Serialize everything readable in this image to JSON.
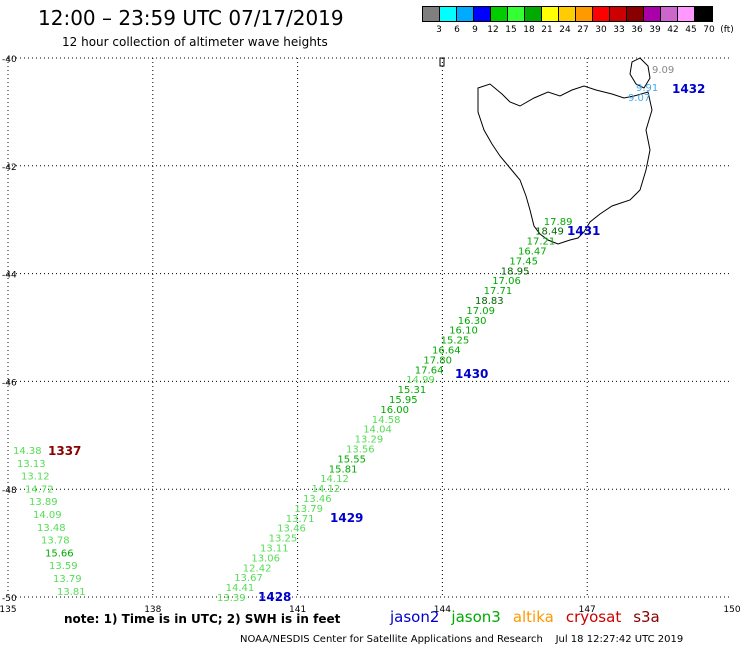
{
  "title": "12:00 – 23:59 UTC 07/17/2019",
  "subtitle": "12 hour collection of altimeter wave heights",
  "colorbar": {
    "colors": [
      "#7f7f7f",
      "#00ffff",
      "#00aaff",
      "#0000ff",
      "#00cc00",
      "#33ff33",
      "#00aa00",
      "#ffff00",
      "#ffcc00",
      "#ff9900",
      "#ff0000",
      "#cc0000",
      "#880000",
      "#aa00aa",
      "#cc66cc",
      "#ff99ff",
      "#000000"
    ],
    "labels": [
      "3",
      "6",
      "9",
      "12",
      "15",
      "18",
      "21",
      "24",
      "27",
      "30",
      "33",
      "36",
      "39",
      "42",
      "45",
      "70",
      "(ft)"
    ]
  },
  "axes": {
    "lon_ticks": [
      "135",
      "138",
      "141",
      "144",
      "147",
      "150"
    ],
    "lat_ticks": [
      "-40",
      "-42",
      "-44",
      "-46",
      "-48",
      "-50"
    ]
  },
  "tracks": [
    {
      "time": "1337",
      "color": "#880000"
    },
    {
      "time": "1428",
      "color": "#0000cc"
    },
    {
      "time": "1429",
      "color": "#0000cc"
    },
    {
      "time": "1430",
      "color": "#0000cc"
    },
    {
      "time": "1431",
      "color": "#0000cc"
    },
    {
      "time": "1432",
      "color": "#0000cc"
    }
  ],
  "track_1337_values": [
    "14.38",
    "13.13",
    "13.12",
    "14.72",
    "13.89",
    "14.09",
    "13.48",
    "13.78",
    "15.66",
    "13.59",
    "13.79",
    "13.81"
  ],
  "track_main_values": [
    "13.39",
    "14.41",
    "13.67",
    "12.42",
    "13.06",
    "13.11",
    "13.25",
    "13.46",
    "13.71",
    "13.79",
    "13.46",
    "14.12",
    "14.12",
    "15.81",
    "15.55",
    "13.56",
    "13.29",
    "14.04",
    "14.58",
    "16.00",
    "15.95",
    "15.31",
    "14.99",
    "17.64",
    "17.80",
    "16.64",
    "15.25",
    "16.10",
    "16.30",
    "17.09",
    "18.83",
    "17.71",
    "17.06",
    "18.95",
    "17.45",
    "16.47",
    "17.21",
    "18.49",
    "17.89"
  ],
  "track_1432_values": [
    "9.09",
    "9.91",
    "9.07"
  ],
  "note": "note: 1) Time is in UTC; 2) SWH is in feet",
  "satellites": [
    {
      "name": "jason2",
      "color": "#0000cc"
    },
    {
      "name": "jason3",
      "color": "#00aa00"
    },
    {
      "name": "altika",
      "color": "#ff9900"
    },
    {
      "name": "cryosat",
      "color": "#cc0000"
    },
    {
      "name": "s3a",
      "color": "#880000"
    }
  ],
  "footer": "NOAA/NESDIS Center for Satellite Applications and Research    Jul 18 12:27:42 UTC 2019"
}
